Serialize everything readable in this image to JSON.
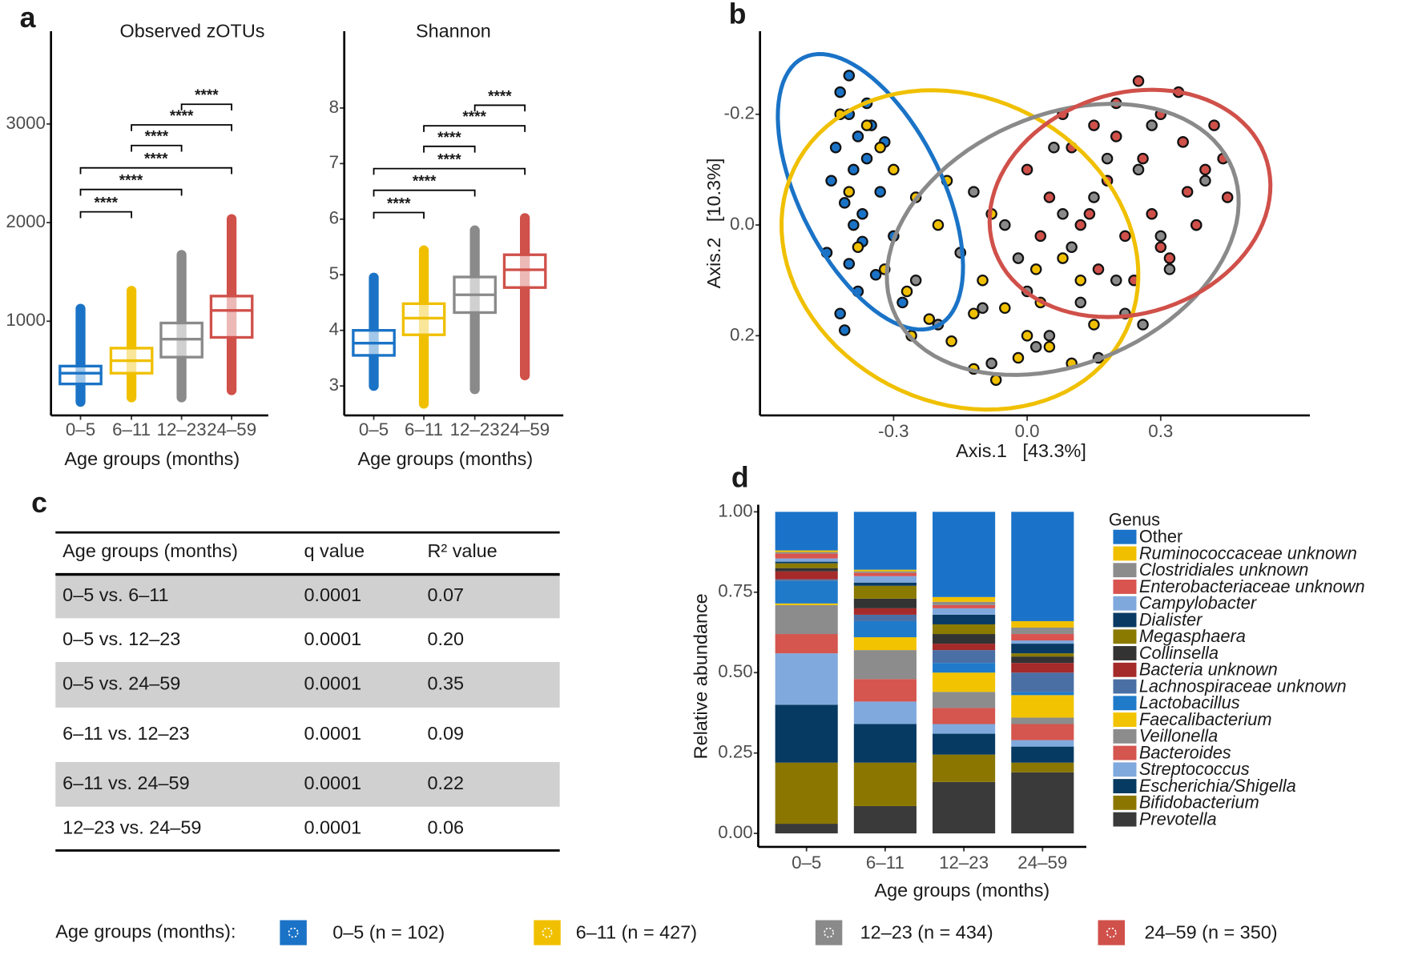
{
  "panel_labels": [
    "a",
    "b",
    "c",
    "d"
  ],
  "chart_data": [
    {
      "type": "box",
      "title": "Observed zOTUs",
      "xlabel": "Age groups (months)",
      "categories": [
        "0–5",
        "6–11",
        "12–23",
        "24–59"
      ],
      "ylim": [
        45,
        3940
      ],
      "yticks": [
        1000,
        2000,
        3000
      ],
      "boxes": [
        {
          "min": 182,
          "q1": 364,
          "median": 473,
          "q3": 545,
          "max": 1127,
          "color": "#1a73c6"
        },
        {
          "min": 227,
          "q1": 473,
          "median": 600,
          "q3": 727,
          "max": 1309,
          "color": "#f0c000"
        },
        {
          "min": 227,
          "q1": 636,
          "median": 818,
          "q3": 982,
          "max": 1673,
          "color": "#8a8a8a"
        },
        {
          "min": 300,
          "q1": 836,
          "median": 1109,
          "q3": 1255,
          "max": 2036,
          "color": "#d0504a"
        }
      ],
      "comparisons": [
        {
          "groups": [
            "12–23",
            "24–59"
          ],
          "y": 3200,
          "label": "****"
        },
        {
          "groups": [
            "6–11",
            "24–59"
          ],
          "y": 2991,
          "label": "****"
        },
        {
          "groups": [
            "6–11",
            "12–23"
          ],
          "y": 2782,
          "label": "****"
        },
        {
          "groups": [
            "0–5",
            "24–59"
          ],
          "y": 2555,
          "label": "****"
        },
        {
          "groups": [
            "0–5",
            "12–23"
          ],
          "y": 2336,
          "label": "****"
        },
        {
          "groups": [
            "0–5",
            "6–11"
          ],
          "y": 2109,
          "label": "****"
        }
      ]
    },
    {
      "type": "box",
      "title": "Shannon",
      "xlabel": "Age groups (months)",
      "categories": [
        "0–5",
        "6–11",
        "12–23",
        "24–59"
      ],
      "ylim": [
        2.47,
        9.38
      ],
      "yticks": [
        3,
        4,
        5,
        6,
        7,
        8
      ],
      "boxes": [
        {
          "min": 3.0,
          "q1": 3.55,
          "median": 3.77,
          "q3": 4.0,
          "max": 4.95,
          "color": "#1a73c6"
        },
        {
          "min": 2.68,
          "q1": 3.92,
          "median": 4.22,
          "q3": 4.48,
          "max": 5.44,
          "color": "#f0c000"
        },
        {
          "min": 2.94,
          "q1": 4.32,
          "median": 4.64,
          "q3": 4.96,
          "max": 5.8,
          "color": "#8a8a8a"
        },
        {
          "min": 3.19,
          "q1": 4.77,
          "median": 5.09,
          "q3": 5.36,
          "max": 6.02,
          "color": "#d0504a"
        }
      ],
      "comparisons": [
        {
          "groups": [
            "12–23",
            "24–59"
          ],
          "y": 8.05,
          "label": "****"
        },
        {
          "groups": [
            "6–11",
            "24–59"
          ],
          "y": 7.68,
          "label": "****"
        },
        {
          "groups": [
            "6–11",
            "12–23"
          ],
          "y": 7.31,
          "label": "****"
        },
        {
          "groups": [
            "0–5",
            "24–59"
          ],
          "y": 6.91,
          "label": "****"
        },
        {
          "groups": [
            "0–5",
            "12–23"
          ],
          "y": 6.52,
          "label": "****"
        },
        {
          "groups": [
            "0–5",
            "6–11"
          ],
          "y": 6.12,
          "label": "****"
        }
      ]
    },
    {
      "type": "scatter",
      "xlabel": "Axis.1   [43.3%]",
      "ylabel": "Axis.2   [10.3%]",
      "legend_title": "Age groups (months):",
      "xlim": [
        -0.6,
        0.635
      ],
      "xticks": [
        -0.3,
        {
          "value": 0,
          "label": "0.0"
        },
        0.3
      ],
      "ylim": [
        0.344,
        -0.35
      ],
      "yticks": [
        -0.2,
        {
          "value": 0,
          "label": "0.0"
        },
        0.2
      ],
      "series": [
        {
          "name": "0–5 (n = 102)",
          "color": "#1a73c6",
          "x": [
            -0.42,
            -0.4,
            -0.38,
            -0.36,
            -0.44,
            -0.41,
            -0.39,
            -0.35,
            -0.37,
            -0.43,
            -0.4,
            -0.33,
            -0.38,
            -0.42,
            -0.36,
            -0.3,
            -0.41,
            -0.39,
            -0.34,
            -0.28,
            -0.37,
            -0.45,
            -0.32,
            -0.4
          ],
          "y": [
            -0.24,
            -0.2,
            -0.16,
            -0.12,
            -0.08,
            -0.04,
            0.0,
            -0.18,
            0.03,
            -0.14,
            0.07,
            -0.06,
            0.12,
            0.16,
            -0.22,
            0.02,
            0.19,
            -0.1,
            0.09,
            0.14,
            -0.02,
            0.05,
            -0.15,
            -0.27
          ],
          "ellipse": {
            "cx": -0.352,
            "cy": -0.06,
            "ax": 0.151,
            "ay": 0.242,
            "bx": -0.143,
            "by": 0.058
          }
        },
        {
          "name": "6–11 (n = 427)",
          "color": "#f0c000",
          "x": [
            -0.42,
            -0.36,
            -0.3,
            -0.25,
            -0.2,
            -0.15,
            -0.1,
            -0.05,
            0.0,
            0.05,
            0.1,
            0.15,
            -0.38,
            -0.32,
            -0.27,
            -0.22,
            -0.17,
            -0.12,
            -0.07,
            -0.02,
            0.03,
            0.08,
            -0.33,
            -0.18,
            -0.08,
            0.12,
            -0.26,
            -0.4,
            -0.12,
            0.02
          ],
          "y": [
            -0.2,
            -0.18,
            -0.1,
            -0.05,
            0.0,
            0.05,
            0.1,
            0.15,
            0.2,
            0.22,
            0.25,
            0.18,
            0.04,
            0.08,
            0.12,
            0.17,
            0.21,
            0.26,
            0.28,
            0.24,
            0.14,
            0.06,
            -0.14,
            -0.08,
            -0.02,
            0.1,
            0.2,
            -0.06,
            0.16,
            0.08
          ],
          "ellipse": {
            "cx": -0.151,
            "cy": 0.045,
            "ax": 0.382,
            "ay": 0.129,
            "bx": -0.121,
            "by": 0.258
          }
        },
        {
          "name": "12–23 (n = 434)",
          "color": "#8a8a8a",
          "x": [
            -0.25,
            -0.2,
            -0.15,
            -0.1,
            -0.05,
            0.0,
            0.05,
            0.1,
            0.15,
            0.2,
            0.25,
            0.3,
            0.35,
            0.4,
            -0.08,
            0.02,
            0.12,
            0.22,
            0.32,
            0.18,
            0.08,
            -0.02,
            0.28,
            0.38,
            -0.12,
            0.06,
            0.16,
            0.26
          ],
          "y": [
            0.1,
            0.18,
            0.05,
            0.15,
            0.0,
            0.12,
            0.2,
            0.04,
            -0.05,
            0.1,
            -0.1,
            0.02,
            -0.15,
            -0.08,
            0.25,
            0.22,
            0.14,
            0.16,
            0.08,
            -0.12,
            -0.02,
            0.06,
            -0.18,
            0.0,
            -0.06,
            -0.14,
            0.24,
            0.18
          ],
          "ellipse": {
            "cx": 0.08,
            "cy": 0.026,
            "ax": 0.382,
            "ay": -0.126,
            "bx": 0.101,
            "by": 0.21
          }
        },
        {
          "name": "24–59 (n = 350)",
          "color": "#d0504a",
          "x": [
            0.0,
            0.05,
            0.1,
            0.15,
            0.2,
            0.25,
            0.3,
            0.35,
            0.4,
            0.45,
            0.12,
            0.18,
            0.22,
            0.28,
            0.32,
            0.38,
            0.42,
            0.08,
            0.26,
            0.34,
            0.16,
            0.24,
            0.3,
            0.36,
            0.2,
            0.03,
            0.44,
            0.14
          ],
          "y": [
            -0.1,
            -0.05,
            -0.14,
            -0.18,
            -0.22,
            -0.26,
            -0.2,
            -0.15,
            -0.1,
            -0.05,
            0.0,
            -0.08,
            0.02,
            -0.02,
            0.06,
            0.0,
            -0.18,
            -0.2,
            -0.12,
            -0.24,
            0.08,
            0.1,
            0.04,
            -0.06,
            -0.16,
            0.02,
            -0.12,
            -0.02
          ],
          "ellipse": {
            "cx": 0.231,
            "cy": -0.039,
            "ax": 0.302,
            "ay": -0.089,
            "bx": 0.091,
            "by": 0.185
          }
        }
      ]
    },
    {
      "type": "stacked_bar",
      "xlabel": "Age groups (months)",
      "ylabel": "Relative abundance",
      "legend_title": "Genus",
      "categories": [
        "0–5",
        "6–11",
        "12–23",
        "24–59"
      ],
      "ylim": [
        -0.042,
        1.022
      ],
      "yticks": [
        {
          "value": 0,
          "label": "0.00"
        },
        {
          "value": 0.25,
          "label": "0.25"
        },
        {
          "value": 0.5,
          "label": "0.50"
        },
        {
          "value": 0.75,
          "label": "0.75"
        },
        {
          "value": 1,
          "label": "1.00"
        }
      ],
      "series": [
        {
          "name": "Prevotella",
          "italic": true,
          "color": "#3a3a3a",
          "values": [
            0.03,
            0.085,
            0.16,
            0.19
          ]
        },
        {
          "name": "Bifidobacterium",
          "italic": true,
          "color": "#8b7700",
          "values": [
            0.19,
            0.135,
            0.085,
            0.03
          ]
        },
        {
          "name": "Escherichia/Shigella",
          "italic": true,
          "color": "#073a62",
          "values": [
            0.18,
            0.12,
            0.065,
            0.05
          ]
        },
        {
          "name": "Streptococcus",
          "italic": true,
          "color": "#80a9dd",
          "values": [
            0.16,
            0.07,
            0.03,
            0.02
          ]
        },
        {
          "name": "Bacteroides",
          "italic": true,
          "color": "#d5554f",
          "values": [
            0.06,
            0.07,
            0.05,
            0.05
          ]
        },
        {
          "name": "Veillonella",
          "italic": true,
          "color": "#8c8c8c",
          "values": [
            0.09,
            0.09,
            0.05,
            0.02
          ]
        },
        {
          "name": "Faecalibacterium",
          "italic": true,
          "color": "#f2c300",
          "values": [
            0.005,
            0.04,
            0.06,
            0.07
          ]
        },
        {
          "name": "Lactobacillus",
          "italic": true,
          "color": "#1f7ac9",
          "values": [
            0.07,
            0.05,
            0.03,
            0.01
          ]
        },
        {
          "name": "Lachnospiraceae unknown",
          "italic": true,
          "color": "#4a6fa5",
          "values": [
            0.005,
            0.02,
            0.04,
            0.06
          ]
        },
        {
          "name": "Bacteria unknown",
          "italic": true,
          "color": "#a52a2a",
          "values": [
            0.025,
            0.02,
            0.02,
            0.03
          ]
        },
        {
          "name": "Collinsella",
          "italic": true,
          "color": "#333333",
          "values": [
            0.01,
            0.03,
            0.03,
            0.02
          ]
        },
        {
          "name": "Megasphaera",
          "italic": true,
          "color": "#8b7a00",
          "values": [
            0.015,
            0.04,
            0.03,
            0.01
          ]
        },
        {
          "name": "Dialister",
          "italic": true,
          "color": "#083a63",
          "values": [
            0.005,
            0.01,
            0.03,
            0.03
          ]
        },
        {
          "name": "Campylobacter",
          "italic": true,
          "color": "#7fa8dc",
          "values": [
            0.01,
            0.02,
            0.02,
            0.01
          ]
        },
        {
          "name": "Enterobacteriaceae unknown",
          "italic": true,
          "color": "#d9534f",
          "values": [
            0.015,
            0.01,
            0.01,
            0.02
          ]
        },
        {
          "name": "Clostridiales unknown",
          "italic": true,
          "color": "#8c8c8c",
          "values": [
            0.005,
            0.005,
            0.01,
            0.02
          ]
        },
        {
          "name": "Ruminococcaceae unknown",
          "italic": true,
          "color": "#f0c000",
          "values": [
            0.005,
            0.005,
            0.015,
            0.02
          ]
        },
        {
          "name": "Other",
          "italic": false,
          "color": "#1a73c9",
          "values": [
            0.12,
            0.18,
            0.265,
            0.34
          ]
        }
      ]
    }
  ],
  "table": {
    "header": [
      "Age groups (months)",
      "q value",
      "R² value"
    ],
    "rows": [
      [
        "0–5 vs. 6–11",
        "0.0001",
        "0.07"
      ],
      [
        "0–5 vs. 12–23",
        "0.0001",
        "0.20"
      ],
      [
        "0–5 vs. 24–59",
        "0.0001",
        "0.35"
      ],
      [
        "6–11 vs. 12–23",
        "0.0001",
        "0.09"
      ],
      [
        "6–11 vs. 24–59",
        "0.0001",
        "0.22"
      ],
      [
        "12–23 vs. 24–59",
        "0.0001",
        "0.06"
      ]
    ]
  }
}
